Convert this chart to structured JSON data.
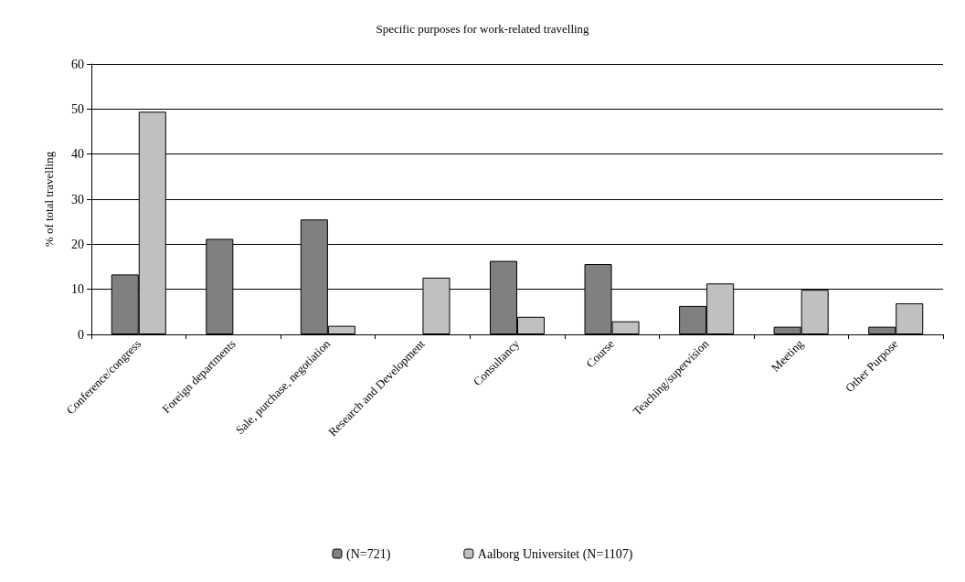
{
  "chart_data": {
    "type": "bar",
    "title": "Specific purposes for work-related travelling",
    "ylabel": "% of total travelling",
    "categories": [
      "Conference/congress",
      "Foreign departments",
      "Sale, purchase, negotiation",
      "Research and Development",
      "Consultancy",
      "Course",
      "Teaching/supervision",
      "Meeting",
      "Other Purpose"
    ],
    "series": [
      {
        "name": "(N=721)",
        "color": "#808080",
        "values": [
          13.3,
          21.2,
          25.5,
          null,
          16.3,
          15.6,
          6.3,
          1.7,
          1.7
        ]
      },
      {
        "name": "Aalborg Universitet (N=1107)",
        "color": "#c0c0c0",
        "values": [
          49.4,
          null,
          1.9,
          12.6,
          3.9,
          2.9,
          11.3,
          9.9,
          6.9
        ]
      }
    ],
    "ylim": [
      0,
      60
    ],
    "yticks": [
      0,
      10,
      20,
      30,
      40,
      50,
      60
    ],
    "grid": "y",
    "legend": "bottom"
  }
}
